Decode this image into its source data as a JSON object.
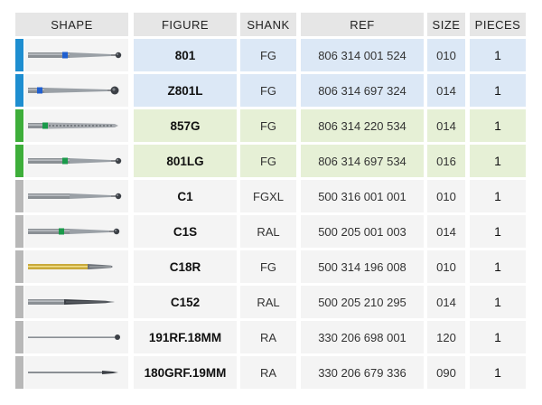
{
  "colors": {
    "blue": "#1e8ed0",
    "green": "#3eae3a",
    "gray": "#b8b8b8",
    "row_blue": "#dce8f6",
    "row_green": "#e6f0d6",
    "row_plain": "#f4f4f4",
    "header": "#e6e6e6"
  },
  "headers": {
    "shape": "SHAPE",
    "figure": "FIGURE",
    "shank": "SHANK",
    "ref": "REF",
    "size": "SIZE",
    "pieces": "PIECES"
  },
  "rows": [
    {
      "figure": "801",
      "shank": "FG",
      "ref": "806 314 001 524",
      "size": "010",
      "pieces": "1",
      "group": "blue",
      "band": "blue",
      "icon": "round-bur-blue-band-icon"
    },
    {
      "figure": "Z801L",
      "shank": "FG",
      "ref": "806 314 697 324",
      "size": "014",
      "pieces": "1",
      "group": "blue",
      "band": "blue",
      "icon": "round-bur-long-blue-band-icon"
    },
    {
      "figure": "857G",
      "shank": "FG",
      "ref": "806 314 220 534",
      "size": "014",
      "pieces": "1",
      "group": "green",
      "band": "green",
      "icon": "diamond-taper-green-band-icon"
    },
    {
      "figure": "801LG",
      "shank": "FG",
      "ref": "806 314 697 534",
      "size": "016",
      "pieces": "1",
      "group": "green",
      "band": "green",
      "icon": "round-bur-green-band-icon"
    },
    {
      "figure": "C1",
      "shank": "FGXL",
      "ref": "500 316 001 001",
      "size": "010",
      "pieces": "1",
      "group": "gray",
      "band": "none",
      "icon": "round-carbide-bur-icon"
    },
    {
      "figure": "C1S",
      "shank": "RAL",
      "ref": "500 205 001 003",
      "size": "014",
      "pieces": "1",
      "group": "gray",
      "band": "green",
      "icon": "round-carbide-bur-green-band-icon"
    },
    {
      "figure": "C18R",
      "shank": "FG",
      "ref": "500 314 196 008",
      "size": "010",
      "pieces": "1",
      "group": "gray",
      "band": "gold",
      "icon": "gold-taper-bur-icon"
    },
    {
      "figure": "C152",
      "shank": "RAL",
      "ref": "500 205 210 295",
      "size": "014",
      "pieces": "1",
      "group": "gray",
      "band": "none",
      "icon": "long-taper-bur-icon"
    },
    {
      "figure": "191RF.18MM",
      "shank": "RA",
      "ref": "330 206 698 001",
      "size": "120",
      "pieces": "1",
      "group": "gray",
      "band": "none",
      "icon": "thin-round-bur-icon"
    },
    {
      "figure": "180GRF.19MM",
      "shank": "RA",
      "ref": "330 206 679 336",
      "size": "090",
      "pieces": "1",
      "group": "gray",
      "band": "none",
      "icon": "thin-drill-bur-icon"
    }
  ]
}
